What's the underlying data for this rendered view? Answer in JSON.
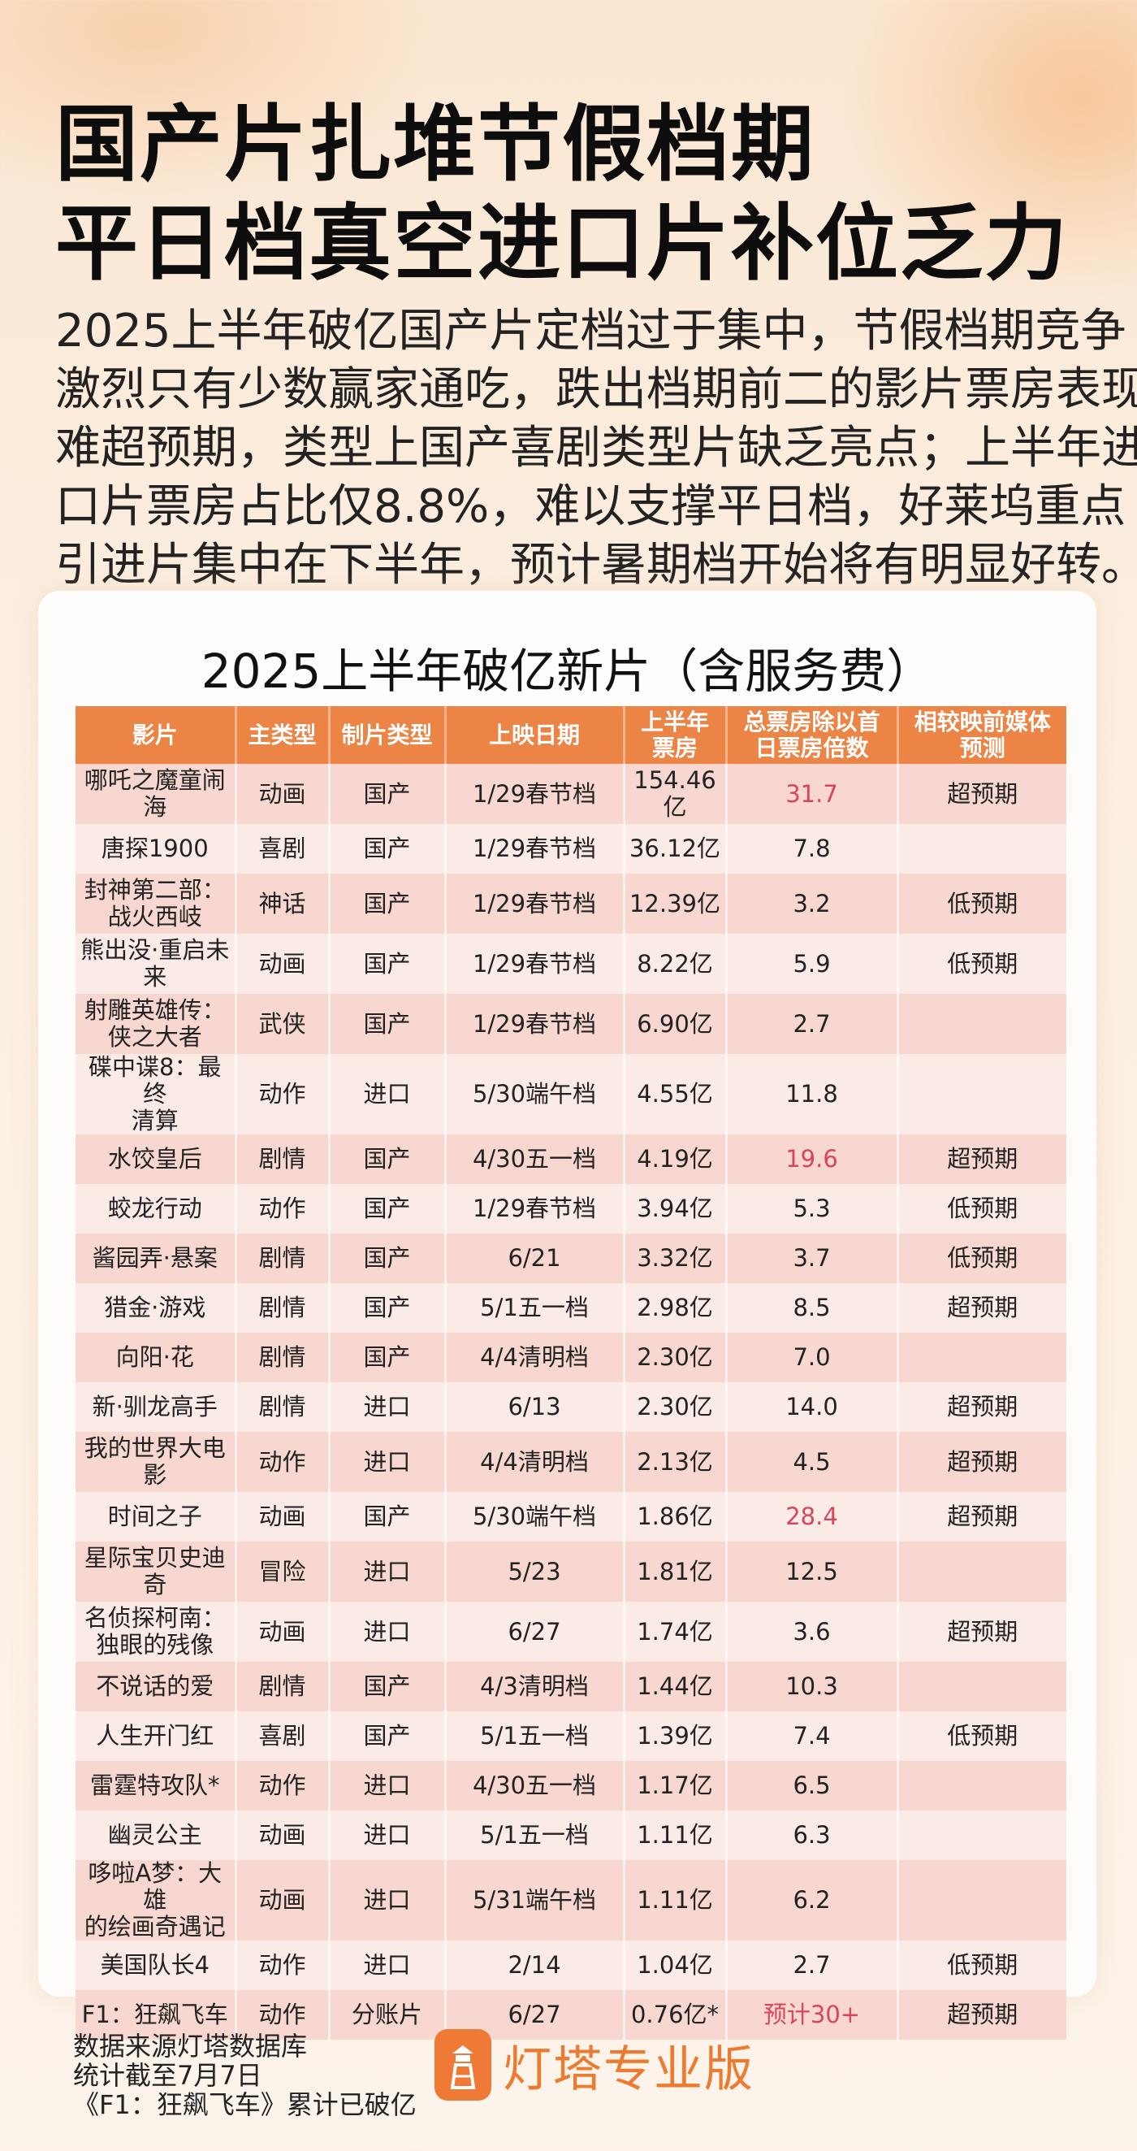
{
  "headline": {
    "lines": [
      "国产片扎堆节假档期",
      "平日档真空进口片补位乏力"
    ]
  },
  "intro": {
    "lines": [
      "2025上半年破亿国产片定档过于集中，节假档期竞争",
      "激烈只有少数赢家通吃，跌出档期前二的影片票房表现",
      "难超预期，类型上国产喜剧类型片缺乏亮点；上半年进",
      "口片票房占比仅8.8%，难以支撑平日档，好莱坞重点",
      "引进片集中在下半年，预计暑期档开始将有明显好转。"
    ]
  },
  "card": {
    "title": "2025上半年破亿新片（含服务费）",
    "columns": [
      "影片",
      "主类型",
      "制片类型",
      "上映日期",
      "上半年\n票房",
      "总票房除以首\n日票房倍数",
      "相较映前媒体\n预测"
    ],
    "rows": [
      {
        "film": "哪吒之魔童闹\n海",
        "genre": "动画",
        "production": "国产",
        "release": "1/29春节档",
        "box_office": "154.46亿",
        "multiple": "31.7",
        "highlight": true,
        "forecast": "超预期"
      },
      {
        "film": "唐探1900",
        "genre": "喜剧",
        "production": "国产",
        "release": "1/29春节档",
        "box_office": "36.12亿",
        "multiple": "7.8",
        "highlight": false,
        "forecast": ""
      },
      {
        "film": "封神第二部：\n战火西岐",
        "genre": "神话",
        "production": "国产",
        "release": "1/29春节档",
        "box_office": "12.39亿",
        "multiple": "3.2",
        "highlight": false,
        "forecast": "低预期"
      },
      {
        "film": "熊出没·重启未\n来",
        "genre": "动画",
        "production": "国产",
        "release": "1/29春节档",
        "box_office": "8.22亿",
        "multiple": "5.9",
        "highlight": false,
        "forecast": "低预期"
      },
      {
        "film": "射雕英雄传：\n侠之大者",
        "genre": "武侠",
        "production": "国产",
        "release": "1/29春节档",
        "box_office": "6.90亿",
        "multiple": "2.7",
        "highlight": false,
        "forecast": ""
      },
      {
        "film": "碟中谍8：最终\n清算",
        "genre": "动作",
        "production": "进口",
        "release": "5/30端午档",
        "box_office": "4.55亿",
        "multiple": "11.8",
        "highlight": false,
        "forecast": ""
      },
      {
        "film": "水饺皇后",
        "genre": "剧情",
        "production": "国产",
        "release": "4/30五一档",
        "box_office": "4.19亿",
        "multiple": "19.6",
        "highlight": true,
        "forecast": "超预期"
      },
      {
        "film": "蛟龙行动",
        "genre": "动作",
        "production": "国产",
        "release": "1/29春节档",
        "box_office": "3.94亿",
        "multiple": "5.3",
        "highlight": false,
        "forecast": "低预期"
      },
      {
        "film": "酱园弄·悬案",
        "genre": "剧情",
        "production": "国产",
        "release": "6/21",
        "box_office": "3.32亿",
        "multiple": "3.7",
        "highlight": false,
        "forecast": "低预期"
      },
      {
        "film": "猎金·游戏",
        "genre": "剧情",
        "production": "国产",
        "release": "5/1五一档",
        "box_office": "2.98亿",
        "multiple": "8.5",
        "highlight": false,
        "forecast": "超预期"
      },
      {
        "film": "向阳·花",
        "genre": "剧情",
        "production": "国产",
        "release": "4/4清明档",
        "box_office": "2.30亿",
        "multiple": "7.0",
        "highlight": false,
        "forecast": ""
      },
      {
        "film": "新·驯龙高手",
        "genre": "剧情",
        "production": "进口",
        "release": "6/13",
        "box_office": "2.30亿",
        "multiple": "14.0",
        "highlight": false,
        "forecast": "超预期"
      },
      {
        "film": "我的世界大电\n影",
        "genre": "动作",
        "production": "进口",
        "release": "4/4清明档",
        "box_office": "2.13亿",
        "multiple": "4.5",
        "highlight": false,
        "forecast": "超预期"
      },
      {
        "film": "时间之子",
        "genre": "动画",
        "production": "国产",
        "release": "5/30端午档",
        "box_office": "1.86亿",
        "multiple": "28.4",
        "highlight": true,
        "forecast": "超预期"
      },
      {
        "film": "星际宝贝史迪\n奇",
        "genre": "冒险",
        "production": "进口",
        "release": "5/23",
        "box_office": "1.81亿",
        "multiple": "12.5",
        "highlight": false,
        "forecast": ""
      },
      {
        "film": "名侦探柯南：\n独眼的残像",
        "genre": "动画",
        "production": "进口",
        "release": "6/27",
        "box_office": "1.74亿",
        "multiple": "3.6",
        "highlight": false,
        "forecast": "超预期"
      },
      {
        "film": "不说话的爱",
        "genre": "剧情",
        "production": "国产",
        "release": "4/3清明档",
        "box_office": "1.44亿",
        "multiple": "10.3",
        "highlight": false,
        "forecast": ""
      },
      {
        "film": "人生开门红",
        "genre": "喜剧",
        "production": "国产",
        "release": "5/1五一档",
        "box_office": "1.39亿",
        "multiple": "7.4",
        "highlight": false,
        "forecast": "低预期"
      },
      {
        "film": "雷霆特攻队*",
        "genre": "动作",
        "production": "进口",
        "release": "4/30五一档",
        "box_office": "1.17亿",
        "multiple": "6.5",
        "highlight": false,
        "forecast": ""
      },
      {
        "film": "幽灵公主",
        "genre": "动画",
        "production": "进口",
        "release": "5/1五一档",
        "box_office": "1.11亿",
        "multiple": "6.3",
        "highlight": false,
        "forecast": ""
      },
      {
        "film": "哆啦A梦：大雄\n的绘画奇遇记",
        "genre": "动画",
        "production": "进口",
        "release": "5/31端午档",
        "box_office": "1.11亿",
        "multiple": "6.2",
        "highlight": false,
        "forecast": ""
      },
      {
        "film": "美国队长4",
        "genre": "动作",
        "production": "进口",
        "release": "2/14",
        "box_office": "1.04亿",
        "multiple": "2.7",
        "highlight": false,
        "forecast": "低预期"
      },
      {
        "film": "F1：狂飙飞车",
        "genre": "动作",
        "production": "分账片",
        "release": "6/27",
        "box_office": "0.76亿*",
        "multiple": "预计30+",
        "highlight": true,
        "forecast": "超预期"
      }
    ]
  },
  "footer": {
    "notes": [
      "数据来源灯塔数据库",
      "统计截至7月7日",
      "《F1：狂飙飞车》累计已破亿"
    ],
    "logo_text": "灯塔专业版",
    "logo_icon": "lighthouse-icon"
  },
  "colors": {
    "header": "#ec8446",
    "row_dark": "#f7d7cf",
    "row_light": "#fbebe6",
    "highlight": "#d8455a",
    "brand": "#ec7b32"
  }
}
